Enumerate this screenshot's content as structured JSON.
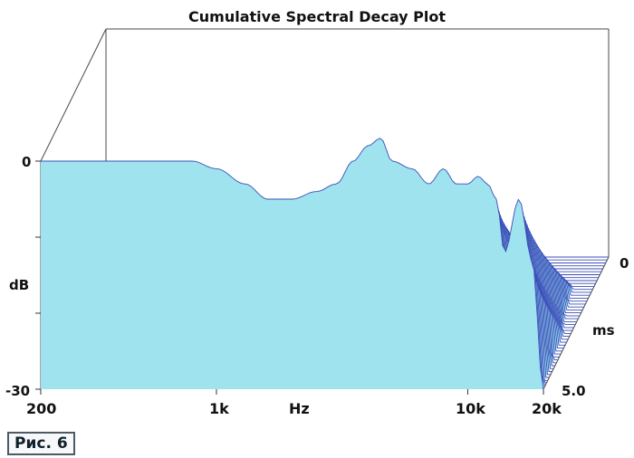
{
  "caption": "Рис. 6",
  "chart_data": {
    "type": "area",
    "title": "Cumulative Spectral Decay Plot",
    "x_axis": {
      "label": "Hz",
      "scale": "log",
      "range": [
        200,
        20000
      ],
      "ticks": [
        {
          "value": 200,
          "label": "200"
        },
        {
          "value": 1000,
          "label": "1k"
        },
        {
          "value": 10000,
          "label": "10k"
        },
        {
          "value": 20000,
          "label": "20k"
        }
      ]
    },
    "y_axis": {
      "label": "dB",
      "range": [
        -30,
        0
      ],
      "ticks": [
        {
          "value": 0,
          "label": "0"
        },
        {
          "value": -30,
          "label": "-30"
        }
      ]
    },
    "z_axis": {
      "label": "ms",
      "range": [
        0,
        5.0
      ],
      "ticks": [
        {
          "value": 0,
          "label": "0"
        },
        {
          "value": 5.0,
          "label": "5.0"
        }
      ]
    },
    "slice_count": 46,
    "surface_color": "#9fe3ef",
    "line_color": "#3c4fb8",
    "front_response_db": {
      "frequencies_hz": [
        200,
        300,
        400,
        600,
        800,
        1000,
        1300,
        1600,
        2000,
        2500,
        3000,
        3500,
        4000,
        4500,
        5000,
        6000,
        7000,
        8000,
        9000,
        10000,
        11000,
        12000,
        13000,
        14000,
        16000,
        18000,
        20000
      ],
      "levels_db": [
        0,
        0,
        0,
        0,
        0,
        -1,
        -3,
        -5,
        -5,
        -4,
        -3,
        0,
        2,
        3,
        0,
        -1,
        -3,
        -1,
        -3,
        -3,
        -2,
        -3,
        -5,
        -12,
        -5,
        -13,
        -30
      ]
    },
    "decay_profile": [
      {
        "time_ms": 0,
        "front": [
          0,
          -30
        ]
      },
      {
        "time_ms": 5.0,
        "front": [
          -30,
          -30
        ]
      }
    ]
  }
}
